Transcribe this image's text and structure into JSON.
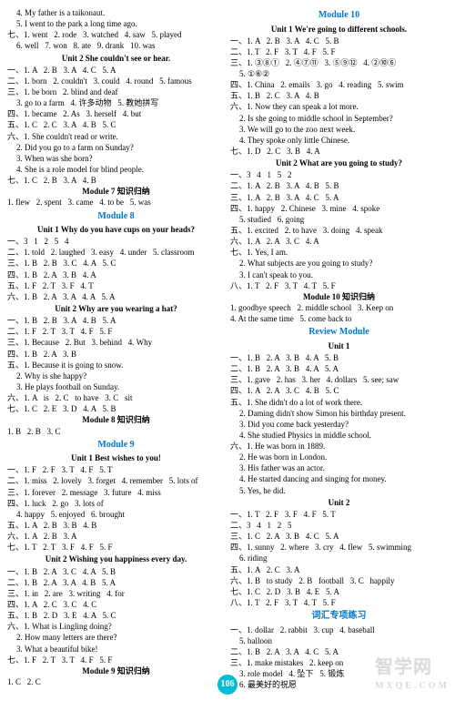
{
  "page_number": "106",
  "watermark_main": "智学网",
  "watermark_sub": "MXQE.COM",
  "left": [
    {
      "cls": "line indent1",
      "txt": "4. My father is a taikonaut."
    },
    {
      "cls": "line indent1",
      "txt": "5. I went to the park a long time ago."
    },
    {
      "cls": "line",
      "txt": "七、1. went   2. rode   3. watched   4. saw   5. played"
    },
    {
      "cls": "line indent1",
      "txt": "6. well   7. won   8. ate   9. drank   10. was"
    },
    {
      "cls": "unit-title",
      "txt": "Unit 2 She couldn't see or hear."
    },
    {
      "cls": "line",
      "txt": "一、1. A   2. B   3. A   4. C   5. A"
    },
    {
      "cls": "line",
      "txt": "二、1. born   2. couldn't   3. could   4. round   5. famous"
    },
    {
      "cls": "line",
      "txt": "三、1. be born   2. blind and deaf"
    },
    {
      "cls": "line indent1",
      "txt": "3. go to a farm   4. 许多动物   5. 教她拼写"
    },
    {
      "cls": "line",
      "txt": "四、1. became   2. As   3. herself   4. but"
    },
    {
      "cls": "line",
      "txt": "五、1. C   2. C   3. A   4. B   5. C"
    },
    {
      "cls": "line",
      "txt": "六、1. She couldn't read or write."
    },
    {
      "cls": "line indent1",
      "txt": "2. Did you go to a farm on Sunday?"
    },
    {
      "cls": "line indent1",
      "txt": "3. When was she born?"
    },
    {
      "cls": "line indent1",
      "txt": "4. She is a role model for blind people."
    },
    {
      "cls": "line",
      "txt": "七、1. C   2. B   3. A   4. B"
    },
    {
      "cls": "sub-title",
      "txt": "Module 7 知识归纳"
    },
    {
      "cls": "line",
      "txt": "1. flew   2. spent   3. came   4. to be   5. was"
    },
    {
      "cls": "module-title",
      "txt": "Module 8"
    },
    {
      "cls": "unit-title",
      "txt": "Unit 1 Why do you have cups on your heads?"
    },
    {
      "cls": "line",
      "txt": "一、3   1   2   5   4"
    },
    {
      "cls": "line",
      "txt": "二、1. told   2. laughed   3. easy   4. under   5. classroom"
    },
    {
      "cls": "line",
      "txt": "三、1. B   2. B   3. C   4. A   5. C"
    },
    {
      "cls": "line",
      "txt": "四、1. B   2. A   3. B   4. A"
    },
    {
      "cls": "line",
      "txt": "五、1. F   2. T   3. F   4. T"
    },
    {
      "cls": "line",
      "txt": "六、1. B   2. A   3. A   4. A   5. A"
    },
    {
      "cls": "unit-title",
      "txt": "Unit 2 Why are you wearing a hat?"
    },
    {
      "cls": "line",
      "txt": "一、1. B   2. B   3. A   4. B   5. A"
    },
    {
      "cls": "line",
      "txt": "二、1. F   2. T   3. T   4. F   5. F"
    },
    {
      "cls": "line",
      "txt": "三、1. Because   2. But   3. behind   4. Why"
    },
    {
      "cls": "line",
      "txt": "四、1. B   2. A   3. B"
    },
    {
      "cls": "line",
      "txt": "五、1. Because it is going to snow."
    },
    {
      "cls": "line indent1",
      "txt": "2. Why is she happy?"
    },
    {
      "cls": "line indent1",
      "txt": "3. He plays football on Sunday."
    },
    {
      "cls": "line",
      "txt": "六、1. A   is   2. C   to have   3. C   sit"
    },
    {
      "cls": "line",
      "txt": "七、1. C   2. E   3. D   4. A   5. B"
    },
    {
      "cls": "sub-title",
      "txt": "Module 8 知识归纳"
    },
    {
      "cls": "line",
      "txt": "1. B   2. B   3. C"
    },
    {
      "cls": "module-title",
      "txt": "Module 9"
    },
    {
      "cls": "unit-title",
      "txt": "Unit 1 Best wishes to you!"
    },
    {
      "cls": "line",
      "txt": "一、1. F   2. F   3. T   4. F   5. T"
    },
    {
      "cls": "line",
      "txt": "二、1. miss   2. lovely   3. forget   4. remember   5. lots of"
    },
    {
      "cls": "line",
      "txt": "三、1. forever   2. message   3. future   4. miss"
    },
    {
      "cls": "line",
      "txt": "四、1. luck   2. go   3. lots of"
    },
    {
      "cls": "line indent1",
      "txt": "4. happy   5. enjoyed   6. brought"
    },
    {
      "cls": "line",
      "txt": "五、1. A   2. B   3. B   4. B"
    },
    {
      "cls": "line",
      "txt": "六、1. A   2. B   3. A"
    },
    {
      "cls": "line",
      "txt": "七、1. T   2. T   3. F   4. F   5. F"
    },
    {
      "cls": "unit-title",
      "txt": "Unit 2 Wishing you happiness every day."
    },
    {
      "cls": "line",
      "txt": "一、1. B   2. A   3. C   4. A   5. B"
    },
    {
      "cls": "line",
      "txt": "二、1. B   2. A   3. A   4. B   5. A"
    },
    {
      "cls": "line",
      "txt": "三、1. in   2. are   3. writing   4. for"
    },
    {
      "cls": "line",
      "txt": "四、1. A   2. C   3. C   4. C"
    },
    {
      "cls": "line",
      "txt": "五、1. B   2. D   3. E   4. A   5. C"
    },
    {
      "cls": "line",
      "txt": "六、1. What is Lingling doing?"
    },
    {
      "cls": "line indent1",
      "txt": "2. How many letters are there?"
    },
    {
      "cls": "line indent1",
      "txt": "3. What a beautiful bike!"
    },
    {
      "cls": "line",
      "txt": "七、1. F   2. T   3. T   4. F   5. F"
    },
    {
      "cls": "sub-title",
      "txt": "Module 9 知识归纳"
    },
    {
      "cls": "line",
      "txt": "1. C   2. C"
    }
  ],
  "right": [
    {
      "cls": "module-title",
      "txt": "Module 10"
    },
    {
      "cls": "unit-title",
      "txt": "Unit 1 We're going to different schools."
    },
    {
      "cls": "line",
      "txt": "一、1. A   2. B   3. A   4. C   5. B"
    },
    {
      "cls": "line",
      "txt": "二、1. T   2. F   3. T   4. F   5. F"
    },
    {
      "cls": "line",
      "txt": "三、1. ③⑧①   2. ④⑦⑪   3. ⑤⑨⑫   4. ②⑩⑥"
    },
    {
      "cls": "line indent1",
      "txt": "5. ①⑥②"
    },
    {
      "cls": "line",
      "txt": "四、1. China   2. emails   3. go   4. reading   5. swim"
    },
    {
      "cls": "line",
      "txt": "五、1. B   2. C   3. A   4. B"
    },
    {
      "cls": "line",
      "txt": "六、1. Now they can speak a lot more."
    },
    {
      "cls": "line indent1",
      "txt": "2. Is she going to middle school in September?"
    },
    {
      "cls": "line indent1",
      "txt": "3. We will go to the zoo next week."
    },
    {
      "cls": "line indent1",
      "txt": "4. They spoke only little Chinese."
    },
    {
      "cls": "line",
      "txt": "七、1. D   2. C   3. B   4. A"
    },
    {
      "cls": "unit-title",
      "txt": "Unit 2 What are you going to study?"
    },
    {
      "cls": "line",
      "txt": "一、3   4   1   5   2"
    },
    {
      "cls": "line",
      "txt": "二、1. A   2. B   3. A   4. B   5. B"
    },
    {
      "cls": "line",
      "txt": "三、1. A   2. B   3. A   4. C   5. A"
    },
    {
      "cls": "line",
      "txt": "四、1. happy   2. Chinese   3. mine   4. spoke"
    },
    {
      "cls": "line indent1",
      "txt": "5. studied   6. going"
    },
    {
      "cls": "line",
      "txt": "五、1. excited   2. to have   3. doing   4. speak"
    },
    {
      "cls": "line",
      "txt": "六、1. A   2. A   3. C   4. A"
    },
    {
      "cls": "line",
      "txt": "七、1. Yes, I am."
    },
    {
      "cls": "line indent1",
      "txt": "2. What subjects are you going to study?"
    },
    {
      "cls": "line indent1",
      "txt": "3. I can't speak to you."
    },
    {
      "cls": "line",
      "txt": "八、1. T   2. F   3. T   4. T   5. F"
    },
    {
      "cls": "sub-title",
      "txt": "Module 10 知识归纳"
    },
    {
      "cls": "line",
      "txt": "1. goodbye speech   2. middle school   3. Keep on"
    },
    {
      "cls": "line",
      "txt": "4. At the same time   5. come back to"
    },
    {
      "cls": "module-title",
      "txt": "Review Module"
    },
    {
      "cls": "unit-title",
      "txt": "Unit 1"
    },
    {
      "cls": "line",
      "txt": "一、1. B   2. A   3. B   4. A   5. B"
    },
    {
      "cls": "line",
      "txt": "二、1. B   2. A   3. B   4. A   5. A"
    },
    {
      "cls": "line",
      "txt": "三、1. gave   2. has   3. her   4. dollars   5. see; saw"
    },
    {
      "cls": "line",
      "txt": "四、1. A   2. A   3. C   4. B   5. C"
    },
    {
      "cls": "line",
      "txt": "五、1. She didn't do a lot of work there."
    },
    {
      "cls": "line indent1",
      "txt": "2. Daming didn't show Simon his birthday present."
    },
    {
      "cls": "line indent1",
      "txt": "3. Did you come back yesterday?"
    },
    {
      "cls": "line indent1",
      "txt": "4. She studied Physics in middle school."
    },
    {
      "cls": "line",
      "txt": "六、1. He was born in 1889."
    },
    {
      "cls": "line indent1",
      "txt": "2. He was born in London."
    },
    {
      "cls": "line indent1",
      "txt": "3. His father was an actor."
    },
    {
      "cls": "line indent1",
      "txt": "4. He started dancing and singing for money."
    },
    {
      "cls": "line indent1",
      "txt": "5. Yes, he did."
    },
    {
      "cls": "unit-title",
      "txt": "Unit 2"
    },
    {
      "cls": "line",
      "txt": "一、1. T   2. F   3. F   4. F   5. T"
    },
    {
      "cls": "line",
      "txt": "二、3   4   1   2   5"
    },
    {
      "cls": "line",
      "txt": "三、1. C   2. A   3. B   4. C   5. A"
    },
    {
      "cls": "line",
      "txt": "四、1. sunny   2. where   3. cry   4. flew   5. swimming"
    },
    {
      "cls": "line indent1",
      "txt": "6. riding"
    },
    {
      "cls": "line",
      "txt": "五、1. A   2. C   3. A"
    },
    {
      "cls": "line",
      "txt": "六、1. B   to study   2. B   football   3. C   happily"
    },
    {
      "cls": "line",
      "txt": "七、1. C   2. D   3. B   4. E   5. A"
    },
    {
      "cls": "line",
      "txt": "八、1. T   2. F   3. T   4. T   5. F"
    },
    {
      "cls": "module-title",
      "txt": "词汇专项练习"
    },
    {
      "cls": "line",
      "txt": "一、1. dollar   2. rabbit   3. cup   4. baseball"
    },
    {
      "cls": "line indent1",
      "txt": "5. balloon"
    },
    {
      "cls": "line",
      "txt": "二、1. B   2. A   3. A   4. C   5. A"
    },
    {
      "cls": "line",
      "txt": "三、1. make mistakes   2. keep on"
    },
    {
      "cls": "line indent1",
      "txt": "3. role model   4. 坠下   5. 锻炼"
    },
    {
      "cls": "line indent1",
      "txt": "6. 最美好的祝愿"
    }
  ]
}
